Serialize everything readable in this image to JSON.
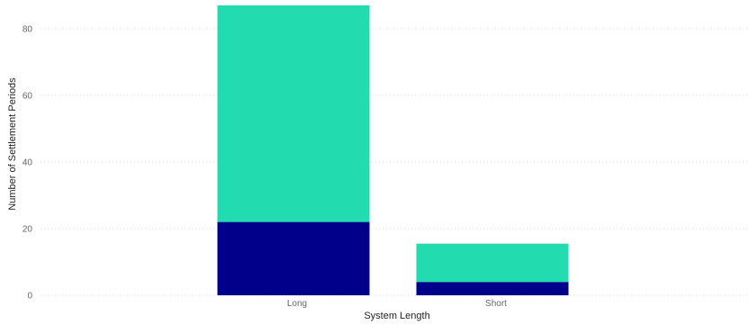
{
  "chart_data": {
    "type": "bar",
    "stacked": true,
    "categories": [
      "Long",
      "Short"
    ],
    "series": [
      {
        "values": [
          22,
          4
        ],
        "color": "#00008b"
      },
      {
        "values": [
          65,
          11.5
        ],
        "color": "#22dbae"
      }
    ],
    "xlabel": "System Length",
    "ylabel": "Number of Settlement Periods",
    "ylim": [
      0,
      87
    ],
    "yticks": [
      0,
      20,
      40,
      60,
      80
    ],
    "grid": true,
    "legend": "none"
  }
}
